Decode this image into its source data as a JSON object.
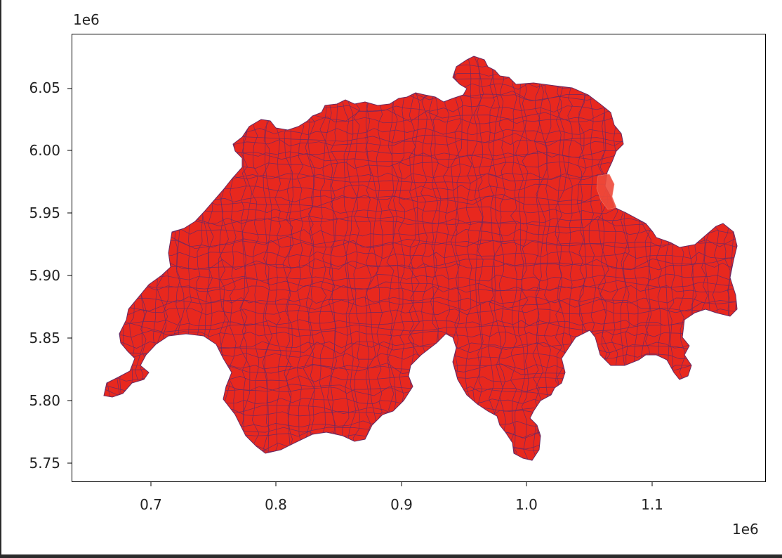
{
  "axes": {
    "x_offset_label": "1e6",
    "y_offset_label": "1e6",
    "x_ticks": [
      "0.7",
      "0.8",
      "0.9",
      "1.0",
      "1.1"
    ],
    "y_ticks": [
      "6.05",
      "6.00",
      "5.95",
      "5.90",
      "5.85",
      "5.80",
      "5.75"
    ]
  },
  "map": {
    "fill_color": "#e8281e",
    "edge_color": "#5b2a6e",
    "highlight_color": "#ef4a3a"
  }
}
